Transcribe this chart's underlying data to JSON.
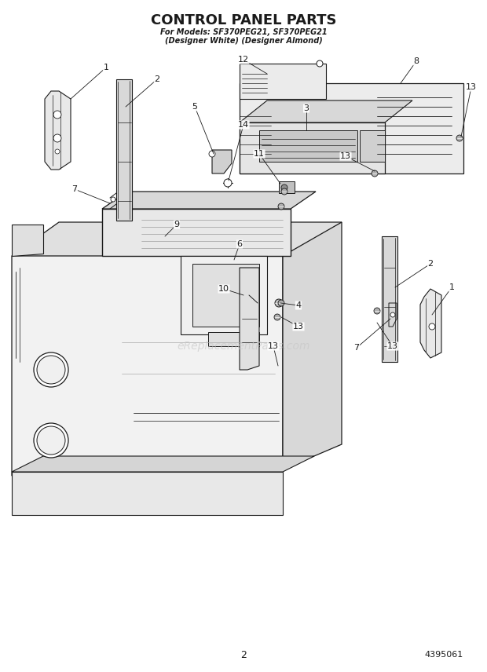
{
  "title": "CONTROL PANEL PARTS",
  "subtitle_line1": "For Models: SF370PEG21, SF370PEG21",
  "subtitle_line2": "(Designer White) (Designer Almond)",
  "page_number": "2",
  "doc_number": "4395061",
  "watermark": "eReplacementParts.com",
  "bg_color": "#ffffff",
  "line_color": "#1a1a1a",
  "gray_fill": "#e8e8e8",
  "dark_gray": "#b0b0b0",
  "mid_gray": "#d0d0d0"
}
